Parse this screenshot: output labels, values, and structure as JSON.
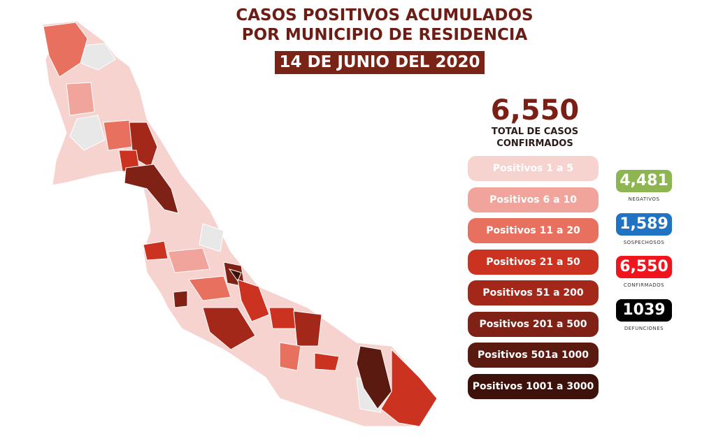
{
  "title_line1": "CASOS POSITIVOS ACUMULADOS",
  "title_line2": "POR MUNICIPIO DE RESIDENCIA",
  "date": "14 DE JUNIO DEL 2020",
  "total": {
    "value": "6,550",
    "label_line1": "TOTAL DE CASOS",
    "label_line2": "CONFIRMADOS"
  },
  "legend": [
    {
      "label": "Positivos 1 a 5",
      "color": "#f7d3d0"
    },
    {
      "label": "Positivos 6 a 10",
      "color": "#f0a49b"
    },
    {
      "label": "Positivos 11 a 20",
      "color": "#e8705f"
    },
    {
      "label": "Positivos 21 a 50",
      "color": "#cc3220"
    },
    {
      "label": "Positivos 51 a 200",
      "color": "#a3281a"
    },
    {
      "label": "Positivos 201 a 500",
      "color": "#7f2215"
    },
    {
      "label": "Positivos 501a 1000",
      "color": "#5b1a10"
    },
    {
      "label": "Positivos 1001 a 3000",
      "color": "#3e120b"
    }
  ],
  "stats": [
    {
      "value": "4,481",
      "label": "NEGATIVOS",
      "color": "#8db552"
    },
    {
      "value": "1,589",
      "label": "SOSPECHOSOS",
      "color": "#1f73c2"
    },
    {
      "value": "6,550",
      "label": "CONFIRMADOS",
      "color": "#f0141c"
    },
    {
      "value": "1039",
      "label": "DEFUNCIONES",
      "color": "#000000"
    }
  ],
  "map": {
    "no_cases_color": "#e8e8e8"
  }
}
